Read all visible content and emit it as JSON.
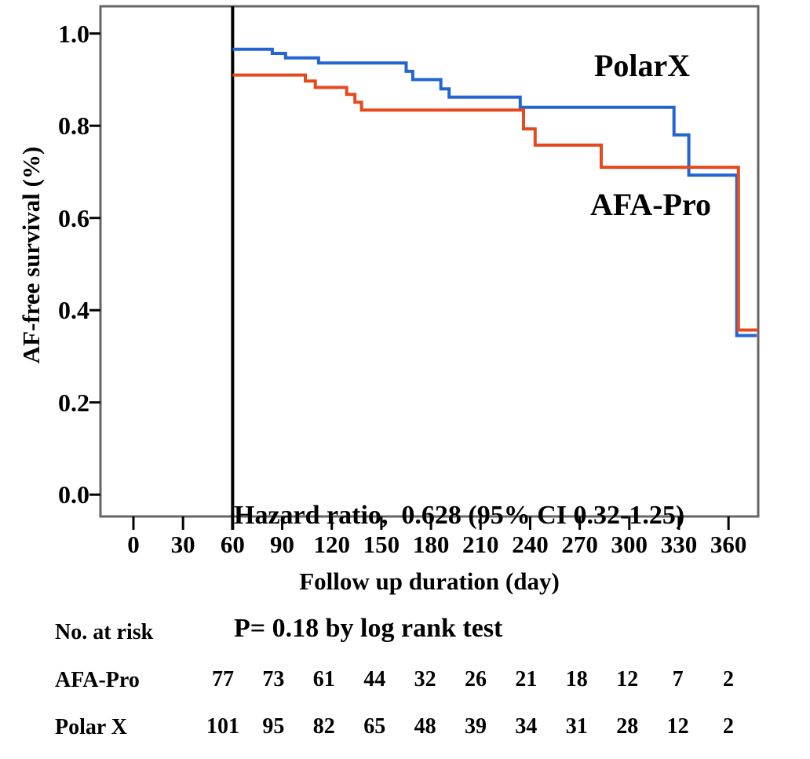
{
  "figure": {
    "y_axis": {
      "title": "AF-free survival (%)",
      "tick_labels": [
        "1.0",
        "0.8",
        "0.6",
        "0.4",
        "0.2",
        "0.0"
      ],
      "tick_values": [
        1.0,
        0.8,
        0.6,
        0.4,
        0.2,
        0.0
      ]
    },
    "x_axis": {
      "title": "Follow up duration (day)",
      "tick_labels": [
        "0",
        "30",
        "60",
        "90",
        "120",
        "150",
        "180",
        "210",
        "240",
        "270",
        "300",
        "330",
        "360"
      ],
      "tick_values": [
        0,
        30,
        60,
        90,
        120,
        150,
        180,
        210,
        240,
        270,
        300,
        330,
        360
      ]
    },
    "curve_labels": {
      "polarx": "PolarX",
      "afapro": "AFA-Pro"
    },
    "annotation": {
      "line1": "Hazard ratio,  0.628 (95% CI 0.32-1.25)",
      "line2": "P= 0.18 by log rank test"
    },
    "colors": {
      "polarx": "#2365d3",
      "afapro": "#e54a1e",
      "box_border": "#666666",
      "blanking_line": "#000000",
      "tick": "#000000"
    }
  },
  "chart_data": {
    "type": "line",
    "subtype": "kaplan-meier-step",
    "title": "",
    "xlabel": "Follow up duration (day)",
    "ylabel": "AF-free survival (%)",
    "xlim": [
      -20,
      378
    ],
    "ylim": [
      -0.05,
      1.05
    ],
    "grid": false,
    "legend_position": "inline-text-labels",
    "blanking_period_line_x": 60,
    "series": [
      {
        "name": "PolarX",
        "color": "#2365d3",
        "step_points": [
          [
            60,
            0.966
          ],
          [
            84,
            0.957
          ],
          [
            92,
            0.947
          ],
          [
            112,
            0.936
          ],
          [
            165,
            0.918
          ],
          [
            169,
            0.9
          ],
          [
            186,
            0.88
          ],
          [
            191,
            0.862
          ],
          [
            234,
            0.84
          ],
          [
            327,
            0.78
          ],
          [
            336,
            0.693
          ],
          [
            365,
            0.345
          ]
        ],
        "end_day": 377
      },
      {
        "name": "AFA-Pro",
        "color": "#e54a1e",
        "step_points": [
          [
            60,
            0.91
          ],
          [
            104,
            0.897
          ],
          [
            110,
            0.883
          ],
          [
            129,
            0.868
          ],
          [
            134,
            0.851
          ],
          [
            138,
            0.834
          ],
          [
            236,
            0.793
          ],
          [
            243,
            0.758
          ],
          [
            283,
            0.71
          ],
          [
            366,
            0.357
          ]
        ],
        "end_day": 378
      }
    ],
    "annotations": [
      "Hazard ratio,  0.628 (95% CI 0.32-1.25)",
      "P= 0.18 by log rank test"
    ]
  },
  "risk_table": {
    "title": "No. at risk",
    "time_points": [
      60,
      90,
      120,
      150,
      180,
      210,
      240,
      270,
      300,
      330,
      360
    ],
    "rows": [
      {
        "label": "AFA-Pro",
        "counts": [
          77,
          73,
          61,
          44,
          32,
          26,
          21,
          18,
          12,
          7,
          2
        ]
      },
      {
        "label": "Polar X",
        "counts": [
          101,
          95,
          82,
          65,
          48,
          39,
          34,
          31,
          28,
          12,
          2
        ]
      }
    ]
  }
}
